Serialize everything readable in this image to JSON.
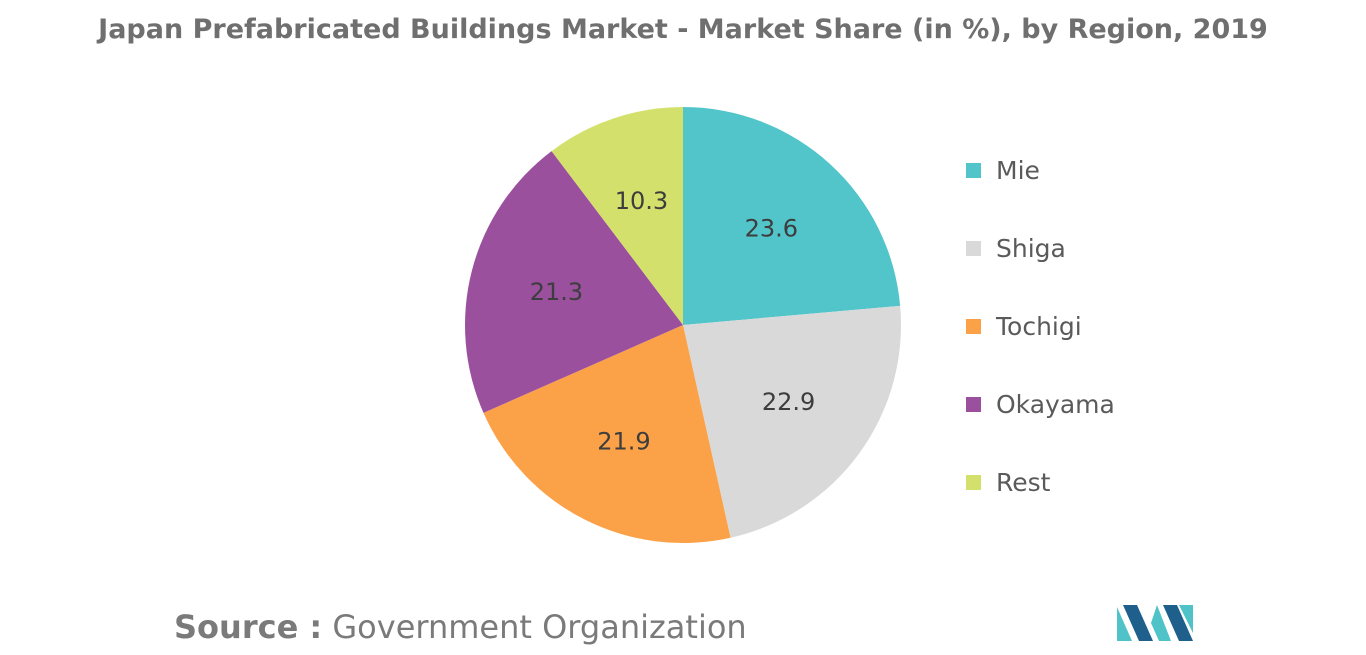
{
  "title": "Japan Prefabricated Buildings Market - Market Share (in %), by Region, 2019",
  "source": {
    "label": "Source :",
    "value": "Government Organization"
  },
  "colors": {
    "title": "#6f6f6f",
    "text": "#5a5a5a",
    "logo_dark": "#1f5f8b",
    "logo_light": "#4fc3c8"
  },
  "logo": {
    "icon": "mordor-intelligence-logo"
  },
  "chart_data": {
    "type": "pie",
    "title": "Japan Prefabricated Buildings Market - Market Share (in %), by Region, 2019",
    "unit": "%",
    "legend_position": "right",
    "start_angle": "top, clockwise",
    "slices": [
      {
        "label": "Mie",
        "value": 23.6,
        "display": "23.6",
        "color": "#52c5cb"
      },
      {
        "label": "Shiga",
        "value": 22.9,
        "display": "22.9",
        "color": "#d9d9d9"
      },
      {
        "label": "Tochigi",
        "value": 21.9,
        "display": "21.9",
        "color": "#fba148"
      },
      {
        "label": "Okayama",
        "value": 21.3,
        "display": "21.3",
        "color": "#9b509e"
      },
      {
        "label": "Rest",
        "value": 10.3,
        "display": "10.3",
        "color": "#d3e16c"
      }
    ]
  }
}
